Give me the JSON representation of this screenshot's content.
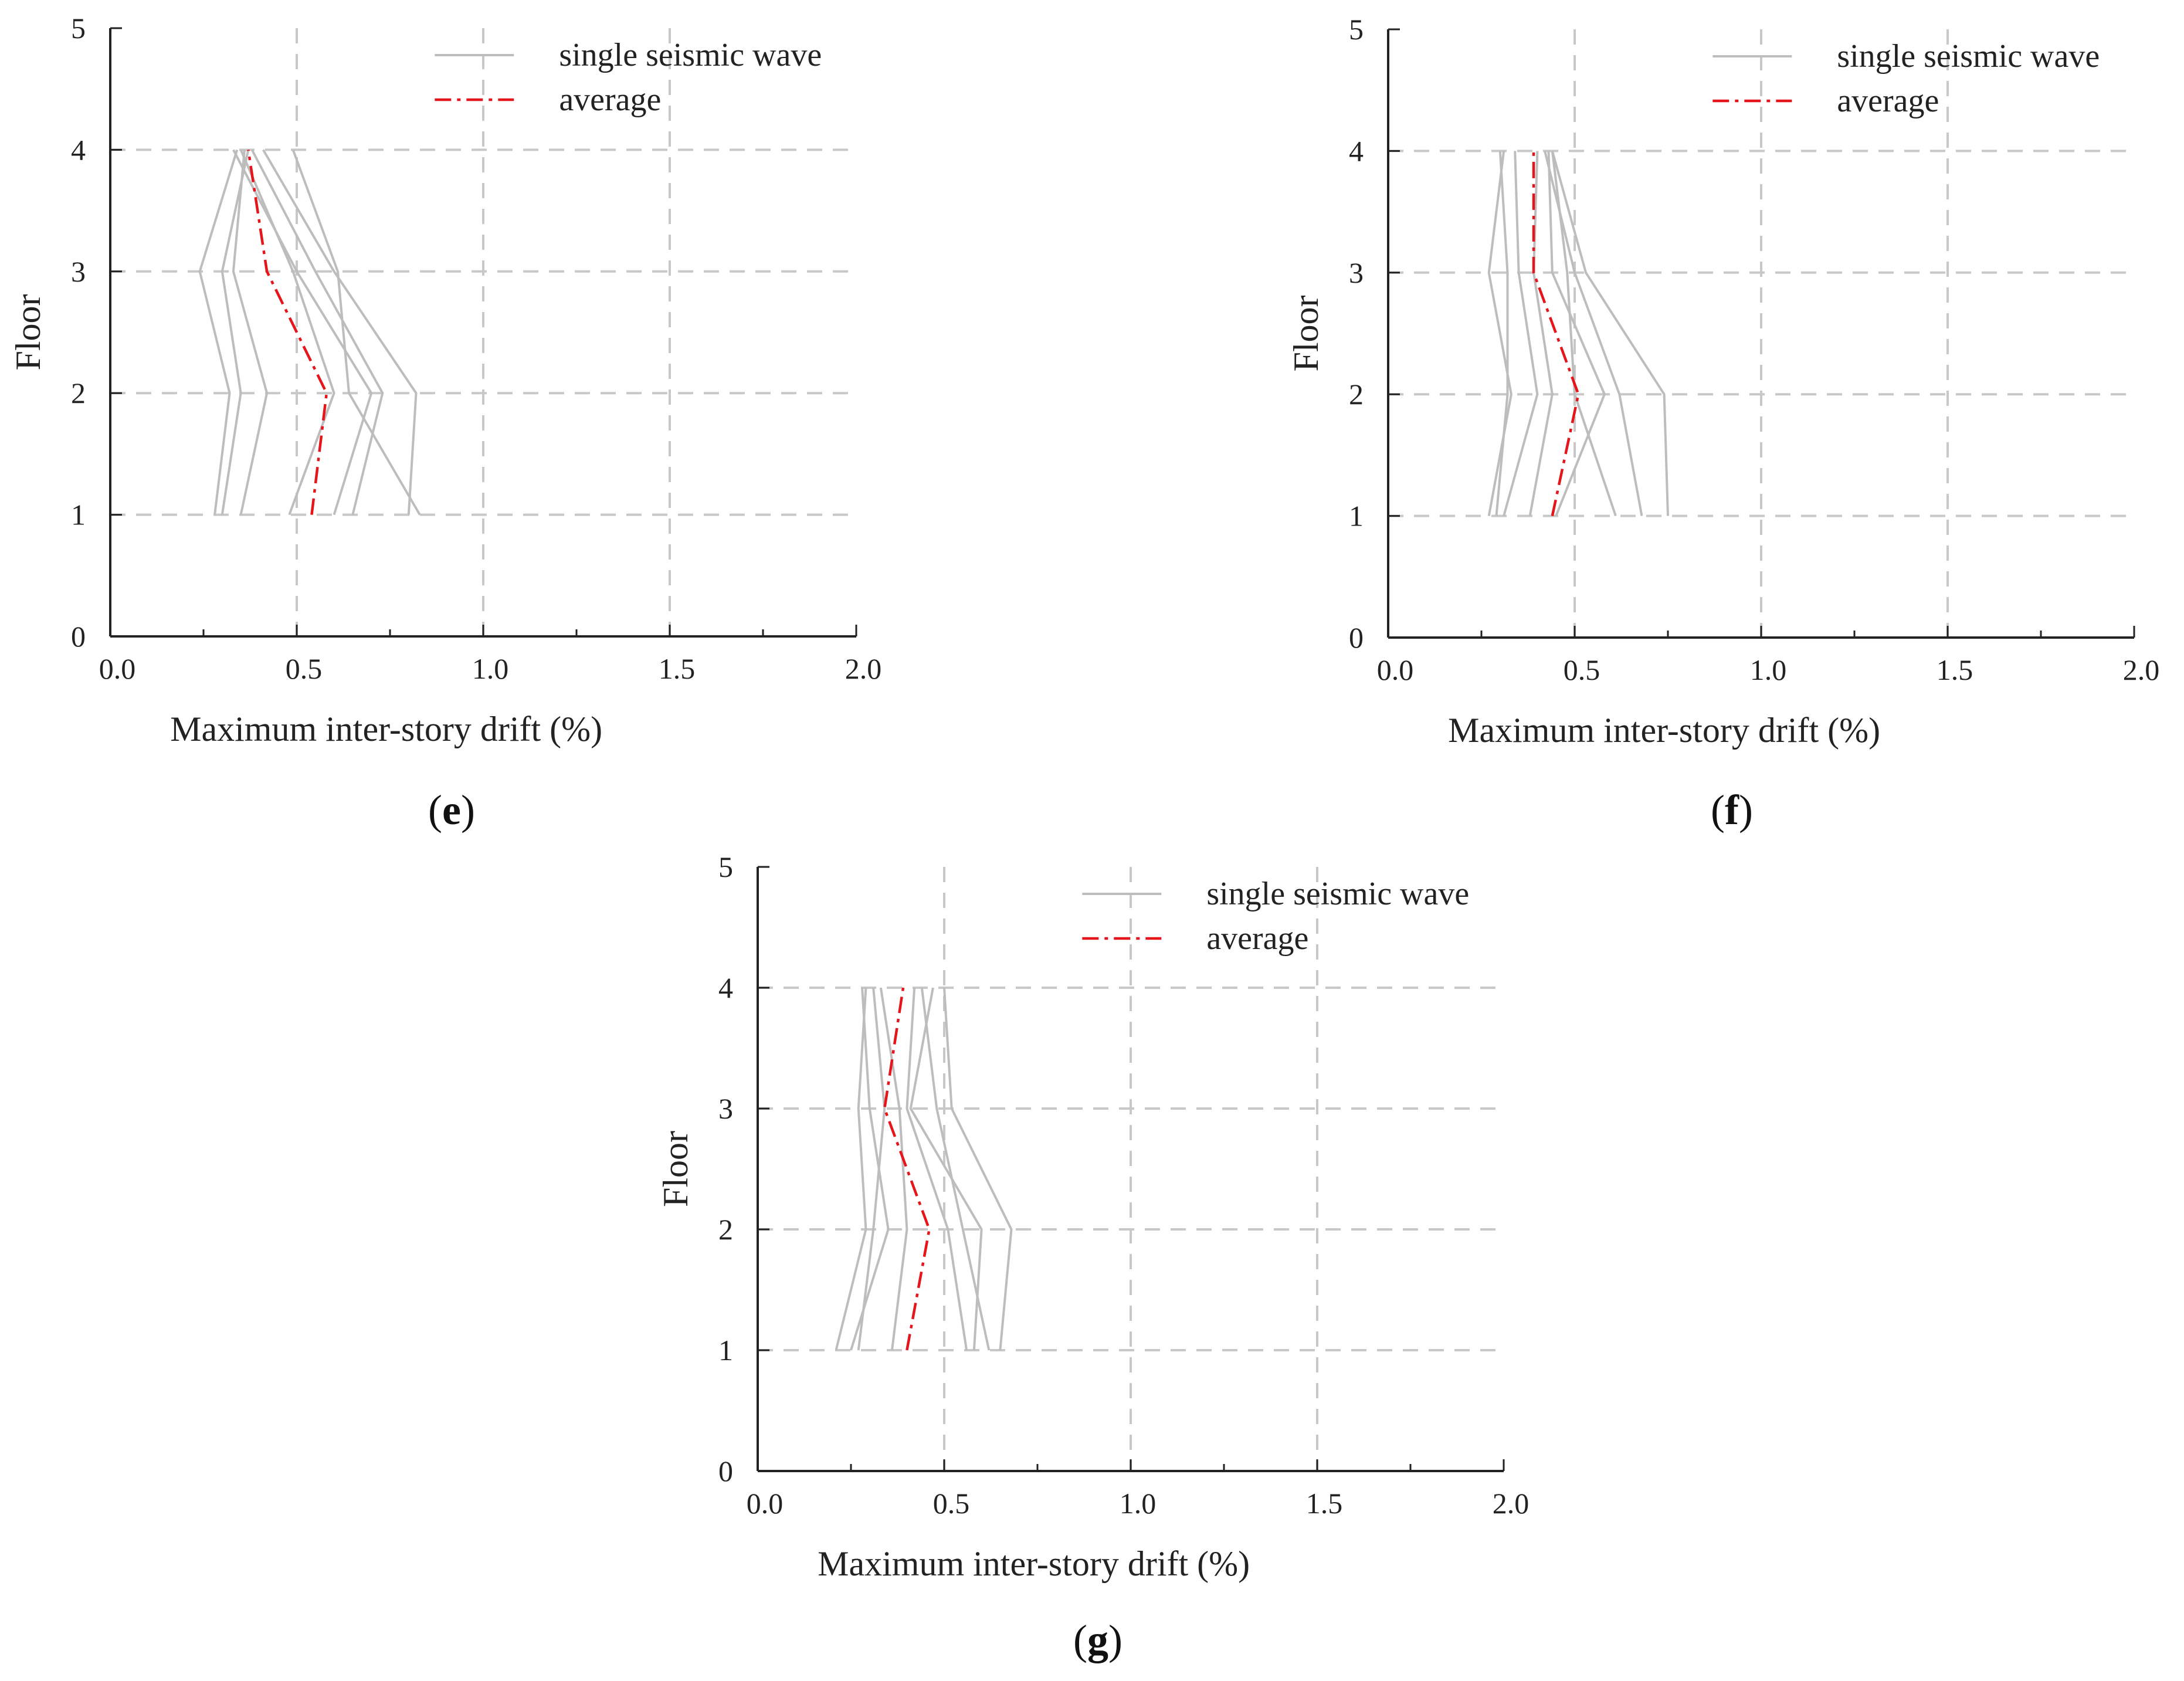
{
  "chart_data": [
    {
      "type": "line",
      "panel_label": "e",
      "xlabel": "Maximum inter-story drift (%)",
      "ylabel": "Floor",
      "xlim": [
        0,
        2
      ],
      "ylim": [
        0,
        5
      ],
      "xticks": [
        "0.0",
        "0.5",
        "1.0",
        "1.5",
        "2.0"
      ],
      "yticks": [
        "0",
        "1",
        "2",
        "3",
        "4",
        "5"
      ],
      "grid_x": [
        0.5,
        1.0,
        1.5
      ],
      "grid_y": [
        1,
        2,
        3,
        4
      ],
      "legend": {
        "position": "top-right",
        "entries": [
          "single seismic wave",
          "average"
        ]
      },
      "floors": [
        1,
        2,
        3,
        4
      ],
      "series": [
        {
          "name": "single seismic wave",
          "values": [
            0.28,
            0.32,
            0.24,
            0.34
          ]
        },
        {
          "name": "single seismic wave",
          "values": [
            0.3,
            0.35,
            0.3,
            0.37
          ]
        },
        {
          "name": "single seismic wave",
          "values": [
            0.35,
            0.42,
            0.33,
            0.36
          ]
        },
        {
          "name": "single seismic wave",
          "values": [
            0.48,
            0.6,
            0.49,
            0.35
          ]
        },
        {
          "name": "single seismic wave",
          "values": [
            0.6,
            0.7,
            0.5,
            0.33
          ]
        },
        {
          "name": "single seismic wave",
          "values": [
            0.65,
            0.73,
            0.55,
            0.38
          ]
        },
        {
          "name": "single seismic wave",
          "values": [
            0.8,
            0.82,
            0.6,
            0.41
          ]
        },
        {
          "name": "single seismic wave",
          "values": [
            0.83,
            0.64,
            0.61,
            0.49
          ]
        },
        {
          "name": "average",
          "values": [
            0.54,
            0.58,
            0.42,
            0.37
          ]
        }
      ]
    },
    {
      "type": "line",
      "panel_label": "f",
      "xlabel": "Maximum inter-story drift (%)",
      "ylabel": "Floor",
      "xlim": [
        0,
        2
      ],
      "ylim": [
        0,
        5
      ],
      "xticks": [
        "0.0",
        "0.5",
        "1.0",
        "1.5",
        "2.0"
      ],
      "yticks": [
        "0",
        "1",
        "2",
        "3",
        "4",
        "5"
      ],
      "grid_x": [
        0.5,
        1.0,
        1.5
      ],
      "grid_y": [
        1,
        2,
        3,
        4
      ],
      "legend": {
        "position": "top-right",
        "entries": [
          "single seismic wave",
          "average"
        ]
      },
      "floors": [
        1,
        2,
        3,
        4
      ],
      "series": [
        {
          "name": "single seismic wave",
          "values": [
            0.27,
            0.33,
            0.27,
            0.31
          ]
        },
        {
          "name": "single seismic wave",
          "values": [
            0.29,
            0.32,
            0.32,
            0.3
          ]
        },
        {
          "name": "single seismic wave",
          "values": [
            0.31,
            0.4,
            0.35,
            0.34
          ]
        },
        {
          "name": "single seismic wave",
          "values": [
            0.38,
            0.44,
            0.39,
            0.4
          ]
        },
        {
          "name": "single seismic wave",
          "values": [
            0.45,
            0.58,
            0.44,
            0.43
          ]
        },
        {
          "name": "single seismic wave",
          "values": [
            0.61,
            0.5,
            0.48,
            0.44
          ]
        },
        {
          "name": "single seismic wave",
          "values": [
            0.68,
            0.62,
            0.5,
            0.42
          ]
        },
        {
          "name": "single seismic wave",
          "values": [
            0.75,
            0.74,
            0.53,
            0.44
          ]
        },
        {
          "name": "average",
          "values": [
            0.44,
            0.51,
            0.39,
            0.39
          ]
        }
      ]
    },
    {
      "type": "line",
      "panel_label": "g",
      "xlabel": "Maximum inter-story drift (%)",
      "ylabel": "Floor",
      "xlim": [
        0,
        2
      ],
      "ylim": [
        0,
        5
      ],
      "xticks": [
        "0.0",
        "0.5",
        "1.0",
        "1.5",
        "2.0"
      ],
      "yticks": [
        "0",
        "1",
        "2",
        "3",
        "4",
        "5"
      ],
      "grid_x": [
        0.5,
        1.0,
        1.5
      ],
      "grid_y": [
        1,
        2,
        3,
        4
      ],
      "legend": {
        "position": "top-right",
        "entries": [
          "single seismic wave",
          "average"
        ]
      },
      "floors": [
        1,
        2,
        3,
        4
      ],
      "series": [
        {
          "name": "single seismic wave",
          "values": [
            0.21,
            0.29,
            0.27,
            0.29
          ]
        },
        {
          "name": "single seismic wave",
          "values": [
            0.25,
            0.35,
            0.3,
            0.28
          ]
        },
        {
          "name": "single seismic wave",
          "values": [
            0.27,
            0.31,
            0.34,
            0.31
          ]
        },
        {
          "name": "single seismic wave",
          "values": [
            0.36,
            0.4,
            0.38,
            0.33
          ]
        },
        {
          "name": "single seismic wave",
          "values": [
            0.56,
            0.51,
            0.4,
            0.42
          ]
        },
        {
          "name": "single seismic wave",
          "values": [
            0.58,
            0.6,
            0.41,
            0.47
          ]
        },
        {
          "name": "single seismic wave",
          "values": [
            0.62,
            0.55,
            0.48,
            0.44
          ]
        },
        {
          "name": "single seismic wave",
          "values": [
            0.65,
            0.68,
            0.52,
            0.5
          ]
        },
        {
          "name": "average",
          "values": [
            0.4,
            0.46,
            0.34,
            0.39
          ]
        }
      ]
    }
  ]
}
